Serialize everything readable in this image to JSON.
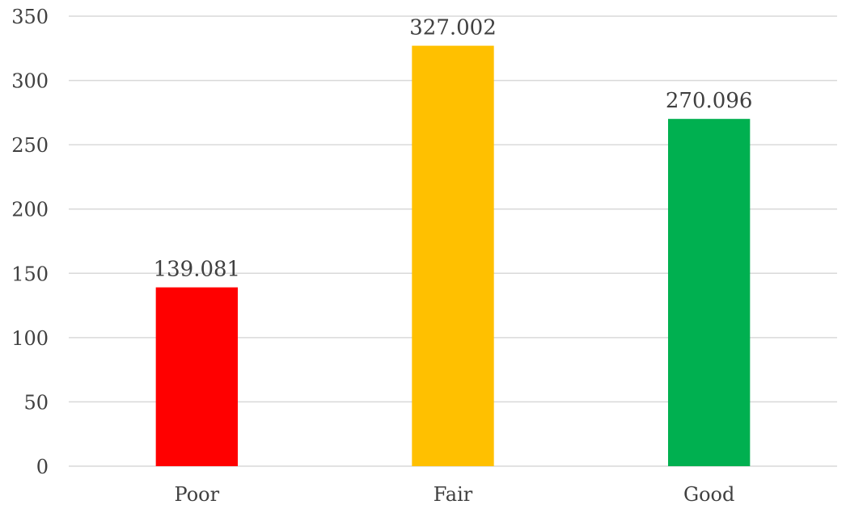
{
  "chart_data": {
    "type": "bar",
    "categories": [
      "Poor",
      "Fair",
      "Good"
    ],
    "values": [
      139.081,
      327.002,
      270.096
    ],
    "data_labels": [
      "139.081",
      "327.002",
      "270.096"
    ],
    "colors": [
      "#ff0000",
      "#ffc000",
      "#00b050"
    ],
    "ylim": [
      0,
      350
    ],
    "yticks": [
      0,
      50,
      100,
      150,
      200,
      250,
      300,
      350
    ],
    "grid": true,
    "title": "",
    "xlabel": "",
    "ylabel": ""
  }
}
